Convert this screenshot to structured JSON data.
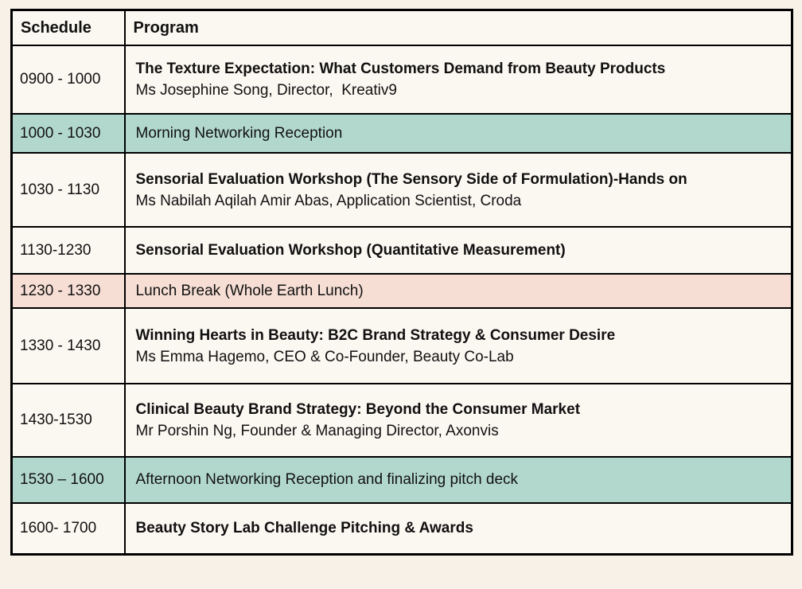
{
  "page": {
    "background_color": "#f7f1e8",
    "cell_color": "#fbf7f1",
    "teal_color": "#b2d8ce",
    "salmon_color": "#f6ded4",
    "border_color": "#000000"
  },
  "table": {
    "header": {
      "schedule": "Schedule",
      "program": "Program"
    },
    "rows": [
      {
        "time": "0900 - 1000",
        "title": "The Texture Expectation: What Customers Demand from Beauty Products",
        "speaker": "Ms Josephine Song, Director,  Kreativ9",
        "highlight": "none"
      },
      {
        "time": "1000 - 1030",
        "text": "Morning Networking Reception",
        "highlight": "teal"
      },
      {
        "time": "1030 - 1130",
        "title": "Sensorial Evaluation Workshop (The Sensory Side of Formulation)-Hands on",
        "speaker": "Ms Nabilah Aqilah Amir Abas, Application Scientist, Croda",
        "highlight": "none"
      },
      {
        "time": "1130-1230",
        "title": "Sensorial Evaluation Workshop (Quantitative Measurement)",
        "highlight": "none"
      },
      {
        "time": "1230 - 1330",
        "text": "Lunch Break (Whole Earth Lunch)",
        "highlight": "salmon"
      },
      {
        "time": "1330 - 1430",
        "title": "Winning Hearts in Beauty: B2C Brand Strategy & Consumer Desire",
        "speaker": "Ms Emma Hagemo, CEO & Co-Founder, Beauty Co-Lab",
        "highlight": "none"
      },
      {
        "time": "1430-1530",
        "title": "Clinical Beauty Brand Strategy: Beyond the Consumer Market",
        "speaker": "Mr Porshin Ng, Founder & Managing Director, Axonvis",
        "highlight": "none"
      },
      {
        "time": "1530 – 1600",
        "text": "Afternoon Networking Reception and finalizing pitch deck",
        "highlight": "teal"
      },
      {
        "time": "1600- 1700",
        "title": "Beauty Story Lab Challenge Pitching & Awards",
        "highlight": "none"
      }
    ]
  }
}
